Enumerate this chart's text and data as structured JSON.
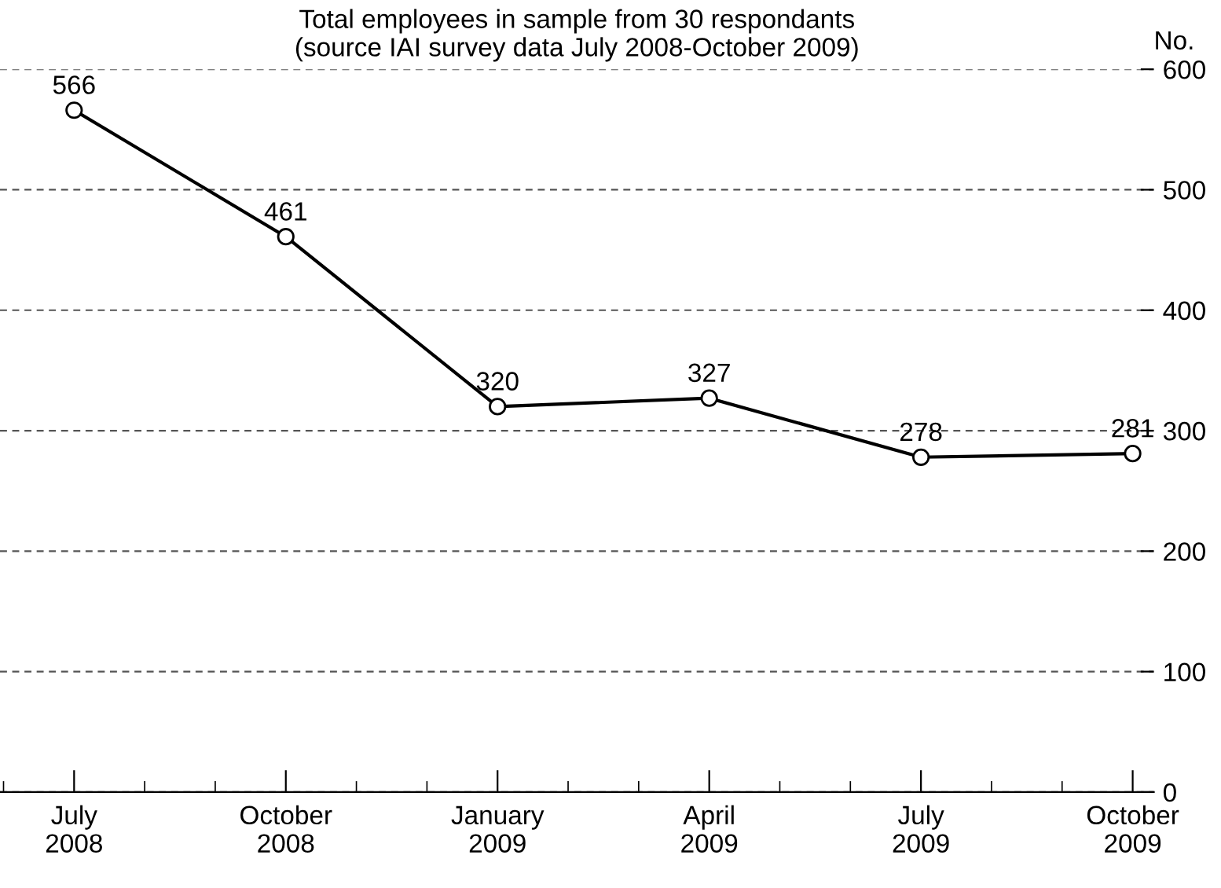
{
  "chart_data": {
    "type": "line",
    "title": "Total employees in sample from 30 respondants\n(source IAI survey data July 2008-October 2009)",
    "ylabel": "No.",
    "categories": [
      "July\n2008",
      "October\n2008",
      "January\n2009",
      "April\n2009",
      "July\n2009",
      "October\n2009"
    ],
    "series": [
      {
        "color": "#000000",
        "values": [
          566,
          461,
          320,
          327,
          278,
          281
        ]
      }
    ],
    "ylim": [
      0,
      600
    ],
    "yticks": [
      0,
      100,
      200,
      300,
      400,
      500,
      600
    ],
    "grid": "y",
    "marker": "circle",
    "line_style": "solid",
    "data_labels": true,
    "legend": false
  }
}
